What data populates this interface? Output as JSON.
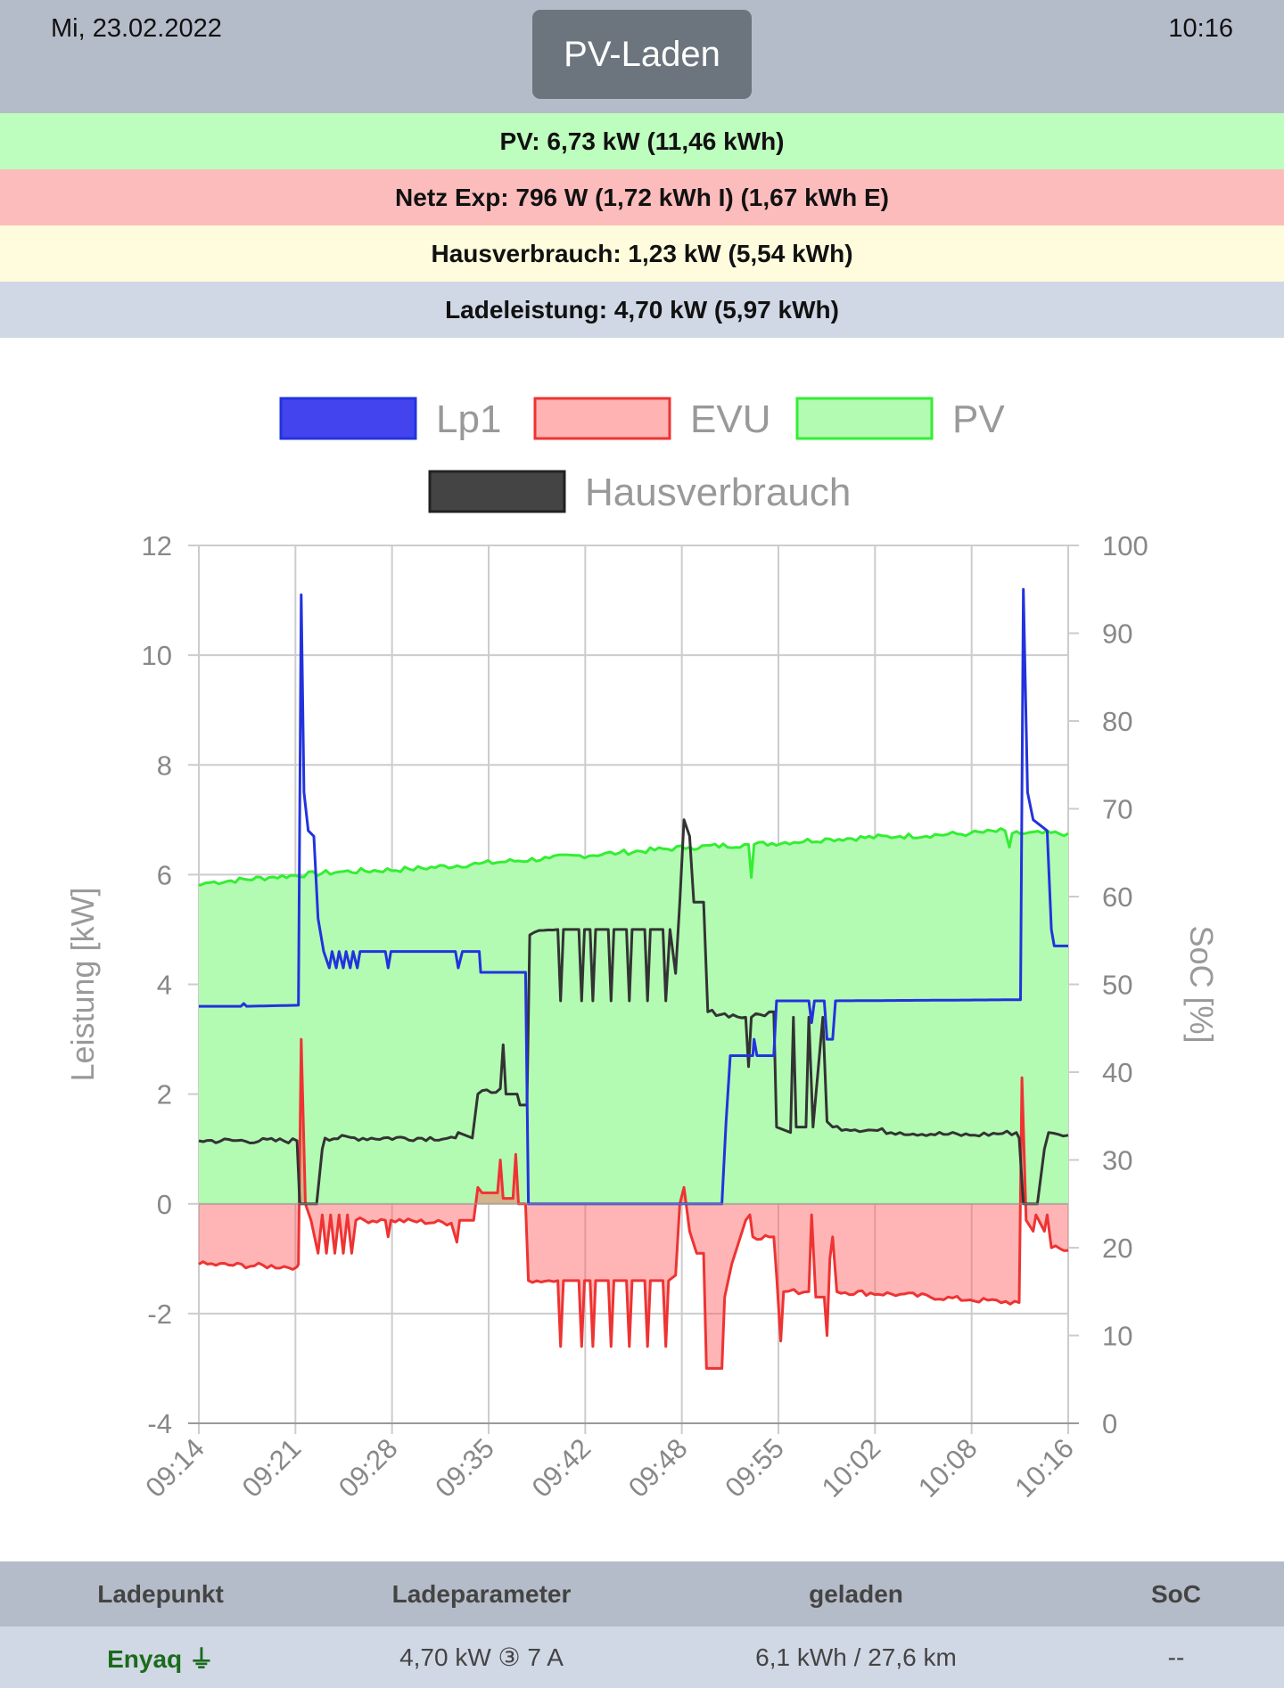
{
  "header": {
    "date": "Mi, 23.02.2022",
    "time": "10:16",
    "mode_button": "PV-Laden"
  },
  "summary": {
    "pv": "PV: 6,73 kW (11,46 kWh)",
    "grid": "Netz Exp: 796 W (1,72 kWh I) (1,67 kWh E)",
    "house": "Hausverbrauch: 1,23 kW (5,54 kWh)",
    "charge": "Ladeleistung: 4,70 kW (5,97 kWh)"
  },
  "colors": {
    "pv_bar": "#bdfdbd",
    "grid_bar": "#fdbcbc",
    "house_bar": "#fefcdc",
    "charge_bar": "#d0d7e5",
    "lp1": "#2233dd",
    "evu": "#ee3333",
    "pv": "#33ee33",
    "haus": "#333333"
  },
  "chart_data": {
    "type": "area",
    "xlabel": "",
    "ylabel": "Leistung [kW]",
    "y2label": "SoC [%]",
    "ylim": [
      -4,
      12
    ],
    "y2lim": [
      0,
      100
    ],
    "xlim_minutes": [
      0,
      62
    ],
    "yticks": [
      "12",
      "10",
      "8",
      "6",
      "4",
      "2",
      "0",
      "-2",
      "-4"
    ],
    "y2ticks": [
      "100",
      "90",
      "80",
      "70",
      "60",
      "50",
      "40",
      "30",
      "20",
      "10",
      "0"
    ],
    "xticks": [
      "09:14",
      "09:21",
      "09:28",
      "09:35",
      "09:42",
      "09:48",
      "09:55",
      "10:02",
      "10:08",
      "10:16"
    ],
    "legend": [
      "Lp1",
      "EVU",
      "PV",
      "Hausverbrauch"
    ],
    "legend_position": "top",
    "series": [
      {
        "name": "PV",
        "color": "#33ee33",
        "fill": "#b3fbb3",
        "points": [
          [
            0,
            5.8
          ],
          [
            0.5,
            5.85
          ],
          [
            5,
            5.95
          ],
          [
            10,
            6.05
          ],
          [
            15,
            6.1
          ],
          [
            20,
            6.2
          ],
          [
            25,
            6.3
          ],
          [
            30,
            6.4
          ],
          [
            35,
            6.5
          ],
          [
            39.2,
            6.55
          ],
          [
            39.4,
            5.95
          ],
          [
            39.6,
            6.55
          ],
          [
            45,
            6.65
          ],
          [
            50,
            6.7
          ],
          [
            55,
            6.75
          ],
          [
            57.5,
            6.8
          ],
          [
            57.8,
            6.5
          ],
          [
            58,
            6.75
          ],
          [
            62,
            6.75
          ]
        ]
      },
      {
        "name": "EVU",
        "color": "#ee3333",
        "fill": "rgba(255,90,90,0.45)",
        "points": [
          [
            0,
            -1.1
          ],
          [
            7,
            -1.15
          ],
          [
            7.1,
            -1.1
          ],
          [
            7.3,
            3.0
          ],
          [
            7.6,
            0
          ],
          [
            8,
            -0.3
          ],
          [
            8.5,
            -0.9
          ],
          [
            8.8,
            -0.2
          ],
          [
            9.1,
            -0.9
          ],
          [
            9.4,
            -0.2
          ],
          [
            9.7,
            -0.9
          ],
          [
            10,
            -0.2
          ],
          [
            10.3,
            -0.9
          ],
          [
            10.6,
            -0.2
          ],
          [
            10.9,
            -0.9
          ],
          [
            11.2,
            -0.3
          ],
          [
            13.3,
            -0.3
          ],
          [
            13.5,
            -0.6
          ],
          [
            13.7,
            -0.3
          ],
          [
            18,
            -0.35
          ],
          [
            18.4,
            -0.7
          ],
          [
            18.6,
            -0.3
          ],
          [
            19.6,
            -0.3
          ],
          [
            19.9,
            0.3
          ],
          [
            20.2,
            0.2
          ],
          [
            21.3,
            0.2
          ],
          [
            21.5,
            0.8
          ],
          [
            21.7,
            0.1
          ],
          [
            22.4,
            0.1
          ],
          [
            22.6,
            0.9
          ],
          [
            22.8,
            0.0
          ],
          [
            23.3,
            0.0
          ],
          [
            23.5,
            -1.4
          ],
          [
            25.6,
            -1.4
          ],
          [
            25.8,
            -2.6
          ],
          [
            26.0,
            -1.4
          ],
          [
            27.1,
            -1.4
          ],
          [
            27.3,
            -2.6
          ],
          [
            27.5,
            -1.4
          ],
          [
            27.9,
            -1.4
          ],
          [
            28.1,
            -2.6
          ],
          [
            28.3,
            -1.4
          ],
          [
            29.2,
            -1.4
          ],
          [
            29.4,
            -2.6
          ],
          [
            29.6,
            -1.4
          ],
          [
            30.5,
            -1.4
          ],
          [
            30.7,
            -2.6
          ],
          [
            30.9,
            -1.4
          ],
          [
            31.8,
            -1.4
          ],
          [
            32.0,
            -2.6
          ],
          [
            32.2,
            -1.4
          ],
          [
            33.1,
            -1.4
          ],
          [
            33.3,
            -2.6
          ],
          [
            33.5,
            -1.4
          ],
          [
            34,
            -1.3
          ],
          [
            34.3,
            0.0
          ],
          [
            34.6,
            0.3
          ],
          [
            35,
            -0.5
          ],
          [
            35.5,
            -0.9
          ],
          [
            36,
            -0.9
          ],
          [
            36.2,
            -3.0
          ],
          [
            37.3,
            -3.0
          ],
          [
            37.5,
            -1.7
          ],
          [
            38,
            -1.1
          ],
          [
            39,
            -0.3
          ],
          [
            39.3,
            -0.2
          ],
          [
            39.5,
            -0.6
          ],
          [
            41,
            -0.6
          ],
          [
            41.2,
            -1.3
          ],
          [
            41.5,
            -2.5
          ],
          [
            41.7,
            -1.6
          ],
          [
            43.5,
            -1.6
          ],
          [
            43.7,
            -0.2
          ],
          [
            44,
            -1.7
          ],
          [
            44.6,
            -1.7
          ],
          [
            44.8,
            -2.4
          ],
          [
            45,
            -1.0
          ],
          [
            45.2,
            -0.6
          ],
          [
            45.5,
            -1.6
          ],
          [
            50,
            -1.65
          ],
          [
            55,
            -1.75
          ],
          [
            58.5,
            -1.8
          ],
          [
            58.7,
            2.3
          ],
          [
            59,
            -0.3
          ],
          [
            59.5,
            -0.5
          ],
          [
            59.7,
            -0.2
          ],
          [
            60.3,
            -0.5
          ],
          [
            60.5,
            -0.2
          ],
          [
            60.8,
            -0.8
          ],
          [
            62,
            -0.85
          ]
        ]
      },
      {
        "name": "Hausverbrauch",
        "color": "#333333",
        "fill": "none",
        "points": [
          [
            0,
            1.15
          ],
          [
            7,
            1.15
          ],
          [
            7.2,
            0
          ],
          [
            8.4,
            0
          ],
          [
            8.8,
            1.0
          ],
          [
            9,
            1.2
          ],
          [
            18.3,
            1.2
          ],
          [
            18.5,
            1.3
          ],
          [
            19.5,
            1.2
          ],
          [
            19.9,
            2.0
          ],
          [
            21.5,
            2.1
          ],
          [
            21.7,
            2.9
          ],
          [
            21.9,
            2.0
          ],
          [
            22.7,
            2.0
          ],
          [
            22.9,
            1.8
          ],
          [
            23.4,
            1.8
          ],
          [
            23.6,
            4.9
          ],
          [
            25.6,
            5.0
          ],
          [
            25.8,
            3.7
          ],
          [
            26.0,
            5.0
          ],
          [
            27.1,
            5.0
          ],
          [
            27.3,
            3.7
          ],
          [
            27.5,
            5.0
          ],
          [
            27.9,
            5.0
          ],
          [
            28.1,
            3.7
          ],
          [
            28.3,
            5.0
          ],
          [
            29.2,
            5.0
          ],
          [
            29.4,
            3.7
          ],
          [
            29.6,
            5.0
          ],
          [
            30.5,
            5.0
          ],
          [
            30.7,
            3.7
          ],
          [
            30.9,
            5.0
          ],
          [
            31.8,
            5.0
          ],
          [
            32.0,
            3.7
          ],
          [
            32.2,
            5.0
          ],
          [
            33.1,
            5.0
          ],
          [
            33.3,
            3.7
          ],
          [
            33.6,
            5.0
          ],
          [
            34,
            4.2
          ],
          [
            34.3,
            5.5
          ],
          [
            34.6,
            7.0
          ],
          [
            35,
            6.7
          ],
          [
            35.3,
            5.5
          ],
          [
            36,
            5.5
          ],
          [
            36.3,
            3.5
          ],
          [
            39,
            3.4
          ],
          [
            39.2,
            2.5
          ],
          [
            39.4,
            3.4
          ],
          [
            41,
            3.5
          ],
          [
            41.2,
            1.4
          ],
          [
            42.2,
            1.3
          ],
          [
            42.4,
            3.4
          ],
          [
            42.6,
            1.4
          ],
          [
            43.3,
            1.4
          ],
          [
            43.5,
            3.4
          ],
          [
            43.8,
            1.4
          ],
          [
            44.5,
            3.4
          ],
          [
            44.8,
            1.5
          ],
          [
            45.2,
            1.4
          ],
          [
            50,
            1.3
          ],
          [
            55,
            1.25
          ],
          [
            58.3,
            1.3
          ],
          [
            58.5,
            1.2
          ],
          [
            58.8,
            0
          ],
          [
            59.8,
            0
          ],
          [
            60.3,
            1.0
          ],
          [
            60.6,
            1.3
          ],
          [
            62,
            1.25
          ]
        ]
      },
      {
        "name": "Lp1",
        "color": "#2233dd",
        "fill": "none",
        "points": [
          [
            0,
            3.6
          ],
          [
            3,
            3.6
          ],
          [
            3.2,
            3.65
          ],
          [
            3.4,
            3.6
          ],
          [
            7.1,
            3.62
          ],
          [
            7.3,
            11.1
          ],
          [
            7.5,
            7.5
          ],
          [
            7.8,
            6.8
          ],
          [
            8.2,
            6.7
          ],
          [
            8.5,
            5.2
          ],
          [
            8.9,
            4.6
          ],
          [
            9.3,
            4.3
          ],
          [
            9.5,
            4.6
          ],
          [
            9.8,
            4.3
          ],
          [
            10,
            4.6
          ],
          [
            10.3,
            4.3
          ],
          [
            10.5,
            4.6
          ],
          [
            10.8,
            4.3
          ],
          [
            11,
            4.6
          ],
          [
            11.3,
            4.3
          ],
          [
            11.5,
            4.6
          ],
          [
            13.3,
            4.6
          ],
          [
            13.5,
            4.3
          ],
          [
            13.7,
            4.6
          ],
          [
            18.3,
            4.6
          ],
          [
            18.5,
            4.3
          ],
          [
            18.8,
            4.6
          ],
          [
            20,
            4.6
          ],
          [
            20.1,
            4.22
          ],
          [
            23.3,
            4.22
          ],
          [
            23.5,
            0
          ],
          [
            37.3,
            0
          ],
          [
            37.6,
            1.5
          ],
          [
            37.9,
            2.7
          ],
          [
            39.5,
            2.7
          ],
          [
            39.6,
            3.0
          ],
          [
            39.8,
            2.7
          ],
          [
            41,
            2.7
          ],
          [
            41.2,
            3.7
          ],
          [
            43.5,
            3.7
          ],
          [
            43.7,
            3.3
          ],
          [
            43.9,
            3.7
          ],
          [
            44.6,
            3.7
          ],
          [
            44.8,
            3.0
          ],
          [
            45.2,
            3.0
          ],
          [
            45.4,
            3.7
          ],
          [
            58.6,
            3.72
          ],
          [
            58.8,
            11.2
          ],
          [
            59.1,
            7.5
          ],
          [
            59.5,
            7.0
          ],
          [
            60.5,
            6.8
          ],
          [
            60.8,
            5.0
          ],
          [
            61,
            4.7
          ],
          [
            62,
            4.7
          ]
        ]
      }
    ]
  },
  "table": {
    "headers": [
      "Ladepunkt",
      "Ladeparameter",
      "geladen",
      "SoC"
    ],
    "row": {
      "name": "Enyaq",
      "plug_icon": "plug-icon",
      "params": "4,70 kW ③ 7 A",
      "charged": "6,1 kWh / 27,6 km",
      "soc": "--"
    }
  }
}
